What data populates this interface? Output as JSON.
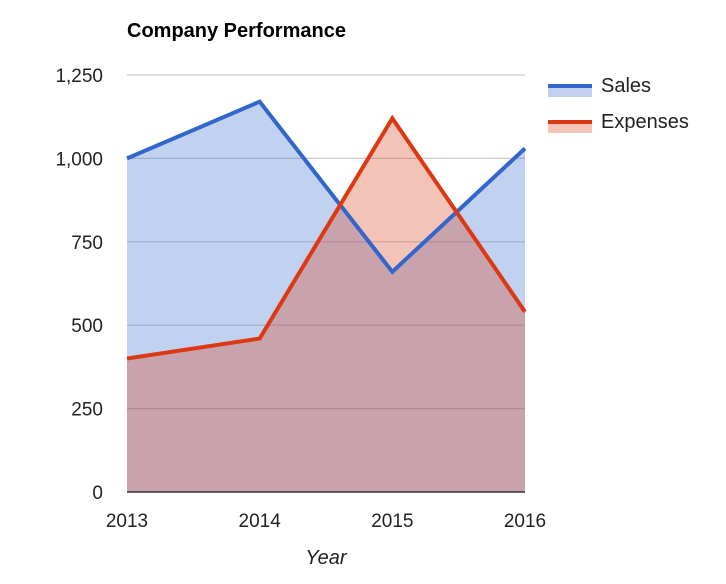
{
  "chart_data": {
    "type": "area",
    "title": "Company Performance",
    "xlabel": "Year",
    "ylabel": "",
    "categories": [
      "2013",
      "2014",
      "2015",
      "2016"
    ],
    "series": [
      {
        "name": "Sales",
        "values": [
          1000,
          1170,
          660,
          1030
        ],
        "color": "#3366cc",
        "fill": "#c2d1f0"
      },
      {
        "name": "Expenses",
        "values": [
          400,
          460,
          1120,
          540
        ],
        "color": "#dc3912",
        "fill": "#f5c4b8"
      }
    ],
    "ylim": [
      0,
      1250
    ],
    "yticks": [
      0,
      250,
      500,
      750,
      1000,
      1250
    ],
    "ytick_labels": [
      "0",
      "250",
      "500",
      "750",
      "1,000",
      "1,250"
    ],
    "grid": true,
    "legend_position": "right",
    "overlap_fill": "#c9a3ab"
  }
}
